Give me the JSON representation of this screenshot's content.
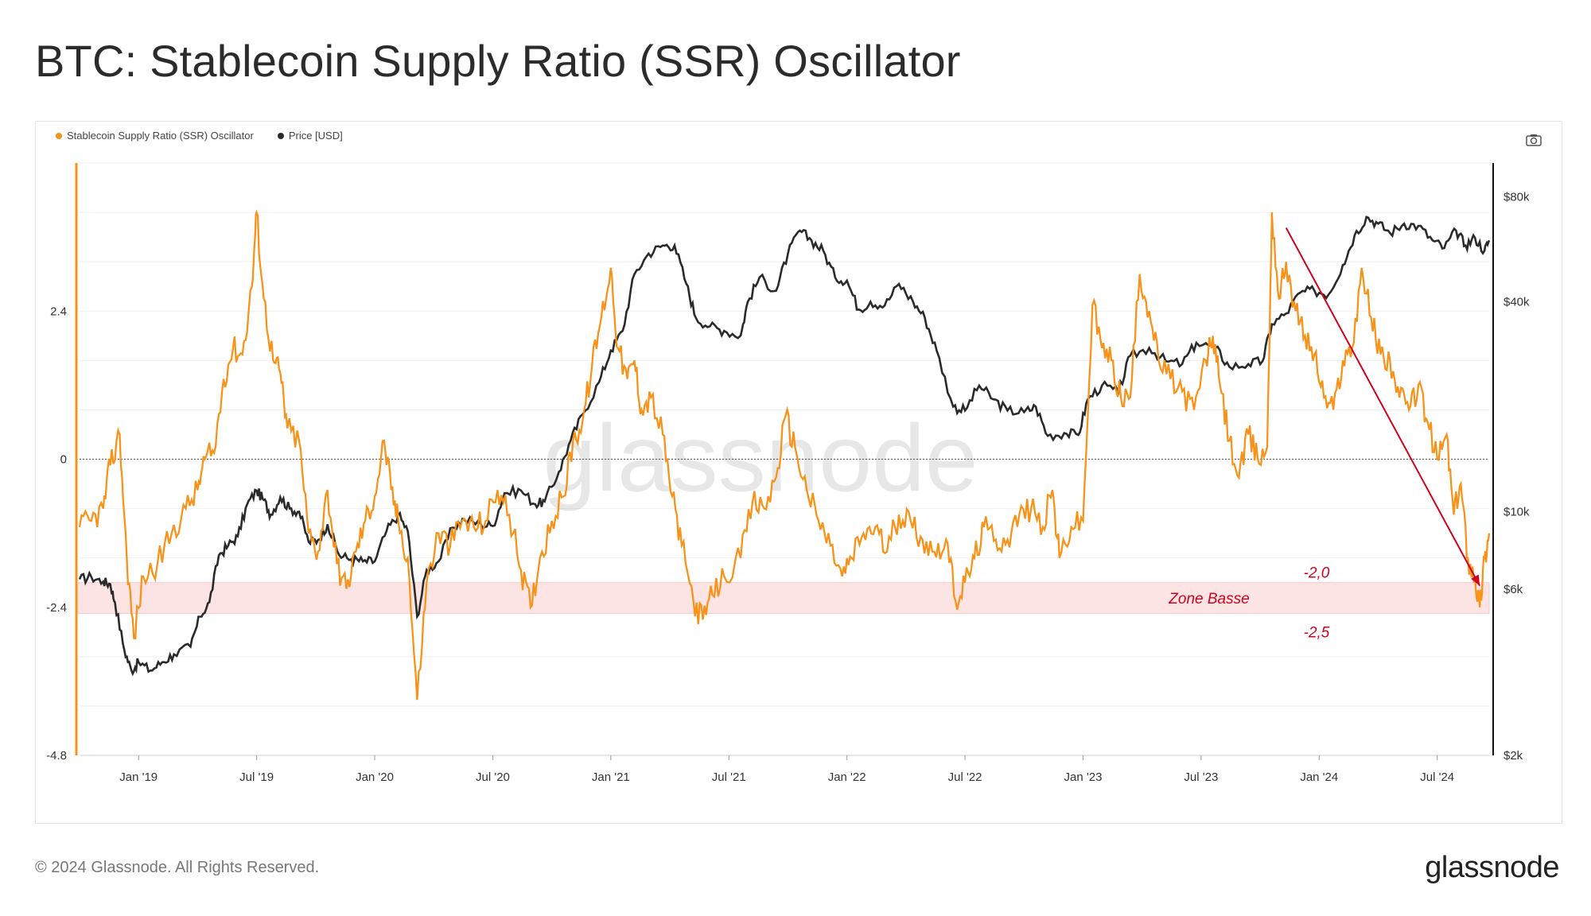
{
  "title": "BTC: Stablecoin Supply Ratio (SSR) Oscillator",
  "legend": {
    "ssr_label": "Stablecoin Supply Ratio (SSR) Oscillator",
    "price_label": "Price [USD]"
  },
  "colors": {
    "ssr": "#f7931a",
    "price": "#2a2a2a",
    "annotation": "#d0021b",
    "zone": "#fde4e4"
  },
  "footer": {
    "copyright": "© 2024 Glassnode. All Rights Reserved.",
    "brand": "glassnode"
  },
  "watermark": "glassnode",
  "chart_data": {
    "type": "line",
    "title": "BTC: Stablecoin Supply Ratio (SSR) Oscillator",
    "x_range": [
      2018.75,
      2024.72
    ],
    "x_ticks": [
      {
        "label": "Jan '19",
        "t": 2019.0
      },
      {
        "label": "Jul '19",
        "t": 2019.5
      },
      {
        "label": "Jan '20",
        "t": 2020.0
      },
      {
        "label": "Jul '20",
        "t": 2020.5
      },
      {
        "label": "Jan '21",
        "t": 2021.0
      },
      {
        "label": "Jul '21",
        "t": 2021.5
      },
      {
        "label": "Jan '22",
        "t": 2022.0
      },
      {
        "label": "Jul '22",
        "t": 2022.5
      },
      {
        "label": "Jan '23",
        "t": 2023.0
      },
      {
        "label": "Jul '23",
        "t": 2023.5
      },
      {
        "label": "Jan '24",
        "t": 2024.0
      },
      {
        "label": "Jul '24",
        "t": 2024.5
      }
    ],
    "y_left": {
      "range": [
        -4.8,
        4.8
      ],
      "ticks": [
        {
          "label": "2.4",
          "v": 2.4
        },
        {
          "label": "0",
          "v": 0
        },
        {
          "label": "-2.4",
          "v": -2.4
        },
        {
          "label": "-4.8",
          "v": -4.8
        }
      ]
    },
    "y_right": {
      "scale": "log",
      "range": [
        2000,
        100000
      ],
      "ticks": [
        {
          "label": "$80k",
          "v": 80000
        },
        {
          "label": "$40k",
          "v": 40000
        },
        {
          "label": "$10k",
          "v": 10000
        },
        {
          "label": "$6k",
          "v": 6000
        },
        {
          "label": "$2k",
          "v": 2000
        }
      ]
    },
    "series": [
      {
        "name": "Stablecoin Supply Ratio (SSR) Oscillator",
        "axis": "left",
        "points": [
          [
            2018.75,
            -1.1
          ],
          [
            2018.8,
            -1.0
          ],
          [
            2018.85,
            -0.8
          ],
          [
            2018.88,
            -0.1
          ],
          [
            2018.92,
            0.4
          ],
          [
            2018.95,
            -1.6
          ],
          [
            2018.98,
            -2.9
          ],
          [
            2019.02,
            -1.9
          ],
          [
            2019.08,
            -1.7
          ],
          [
            2019.14,
            -1.2
          ],
          [
            2019.2,
            -0.8
          ],
          [
            2019.25,
            -0.5
          ],
          [
            2019.28,
            0.0
          ],
          [
            2019.32,
            0.1
          ],
          [
            2019.36,
            1.3
          ],
          [
            2019.4,
            1.8
          ],
          [
            2019.44,
            1.7
          ],
          [
            2019.48,
            2.8
          ],
          [
            2019.5,
            4.0
          ],
          [
            2019.53,
            2.6
          ],
          [
            2019.57,
            1.6
          ],
          [
            2019.6,
            1.4
          ],
          [
            2019.63,
            0.5
          ],
          [
            2019.68,
            0.3
          ],
          [
            2019.72,
            -1.2
          ],
          [
            2019.76,
            -1.5
          ],
          [
            2019.8,
            -0.5
          ],
          [
            2019.84,
            -1.7
          ],
          [
            2019.88,
            -2.1
          ],
          [
            2019.92,
            -1.5
          ],
          [
            2019.96,
            -1.0
          ],
          [
            2020.0,
            -0.6
          ],
          [
            2020.04,
            0.3
          ],
          [
            2020.07,
            -0.5
          ],
          [
            2020.1,
            -1.0
          ],
          [
            2020.14,
            -1.6
          ],
          [
            2020.18,
            -3.9
          ],
          [
            2020.22,
            -2.0
          ],
          [
            2020.27,
            -1.2
          ],
          [
            2020.32,
            -1.4
          ],
          [
            2020.37,
            -1.0
          ],
          [
            2020.42,
            -1.1
          ],
          [
            2020.47,
            -1.0
          ],
          [
            2020.52,
            -0.5
          ],
          [
            2020.57,
            -0.9
          ],
          [
            2020.62,
            -1.8
          ],
          [
            2020.66,
            -2.4
          ],
          [
            2020.7,
            -1.6
          ],
          [
            2020.75,
            -1.0
          ],
          [
            2020.8,
            -0.6
          ],
          [
            2020.84,
            0.3
          ],
          [
            2020.88,
            0.6
          ],
          [
            2020.92,
            1.5
          ],
          [
            2020.96,
            2.3
          ],
          [
            2021.0,
            3.1
          ],
          [
            2021.03,
            1.8
          ],
          [
            2021.07,
            1.3
          ],
          [
            2021.1,
            1.6
          ],
          [
            2021.13,
            0.8
          ],
          [
            2021.17,
            1.0
          ],
          [
            2021.22,
            0.4
          ],
          [
            2021.26,
            -0.6
          ],
          [
            2021.3,
            -1.4
          ],
          [
            2021.35,
            -2.3
          ],
          [
            2021.39,
            -2.6
          ],
          [
            2021.43,
            -2.2
          ],
          [
            2021.48,
            -1.9
          ],
          [
            2021.55,
            -1.6
          ],
          [
            2021.6,
            -0.7
          ],
          [
            2021.65,
            -0.8
          ],
          [
            2021.7,
            -0.3
          ],
          [
            2021.74,
            0.7
          ],
          [
            2021.78,
            0.2
          ],
          [
            2021.83,
            -0.5
          ],
          [
            2021.88,
            -1.0
          ],
          [
            2021.93,
            -1.4
          ],
          [
            2021.98,
            -1.9
          ],
          [
            2022.02,
            -1.6
          ],
          [
            2022.07,
            -1.2
          ],
          [
            2022.12,
            -1.1
          ],
          [
            2022.17,
            -1.5
          ],
          [
            2022.22,
            -0.9
          ],
          [
            2022.27,
            -1.0
          ],
          [
            2022.32,
            -1.3
          ],
          [
            2022.37,
            -1.5
          ],
          [
            2022.42,
            -1.3
          ],
          [
            2022.46,
            -2.3
          ],
          [
            2022.5,
            -2.0
          ],
          [
            2022.54,
            -1.6
          ],
          [
            2022.58,
            -1.1
          ],
          [
            2022.63,
            -1.3
          ],
          [
            2022.68,
            -1.3
          ],
          [
            2022.73,
            -0.9
          ],
          [
            2022.78,
            -0.8
          ],
          [
            2022.83,
            -1.1
          ],
          [
            2022.87,
            -0.5
          ],
          [
            2022.9,
            -1.6
          ],
          [
            2022.95,
            -1.1
          ],
          [
            2023.0,
            -1.0
          ],
          [
            2023.04,
            2.5
          ],
          [
            2023.08,
            1.8
          ],
          [
            2023.12,
            1.6
          ],
          [
            2023.16,
            1.0
          ],
          [
            2023.2,
            1.0
          ],
          [
            2023.24,
            3.0
          ],
          [
            2023.28,
            2.4
          ],
          [
            2023.32,
            1.6
          ],
          [
            2023.37,
            1.3
          ],
          [
            2023.42,
            1.1
          ],
          [
            2023.47,
            0.8
          ],
          [
            2023.52,
            1.6
          ],
          [
            2023.55,
            2.0
          ],
          [
            2023.58,
            1.2
          ],
          [
            2023.62,
            0.3
          ],
          [
            2023.66,
            -0.3
          ],
          [
            2023.7,
            0.4
          ],
          [
            2023.74,
            0.0
          ],
          [
            2023.78,
            0.2
          ],
          [
            2023.8,
            4.0
          ],
          [
            2023.83,
            2.6
          ],
          [
            2023.86,
            3.2
          ],
          [
            2023.9,
            2.4
          ],
          [
            2023.94,
            2.0
          ],
          [
            2023.98,
            1.7
          ],
          [
            2024.02,
            1.0
          ],
          [
            2024.06,
            0.8
          ],
          [
            2024.1,
            1.6
          ],
          [
            2024.14,
            1.8
          ],
          [
            2024.18,
            3.1
          ],
          [
            2024.22,
            2.3
          ],
          [
            2024.26,
            1.7
          ],
          [
            2024.3,
            1.6
          ],
          [
            2024.34,
            1.0
          ],
          [
            2024.38,
            0.8
          ],
          [
            2024.42,
            1.2
          ],
          [
            2024.46,
            0.6
          ],
          [
            2024.5,
            0.0
          ],
          [
            2024.54,
            0.4
          ],
          [
            2024.57,
            -0.9
          ],
          [
            2024.6,
            -0.4
          ],
          [
            2024.63,
            -1.6
          ],
          [
            2024.66,
            -1.9
          ],
          [
            2024.68,
            -2.4
          ],
          [
            2024.7,
            -1.6
          ],
          [
            2024.72,
            -1.2
          ]
        ]
      },
      {
        "name": "Price [USD]",
        "axis": "right",
        "points": [
          [
            2018.75,
            6400
          ],
          [
            2018.8,
            6500
          ],
          [
            2018.85,
            6300
          ],
          [
            2018.88,
            6200
          ],
          [
            2018.9,
            5500
          ],
          [
            2018.94,
            4000
          ],
          [
            2018.97,
            3500
          ],
          [
            2019.0,
            3700
          ],
          [
            2019.05,
            3500
          ],
          [
            2019.1,
            3700
          ],
          [
            2019.15,
            3900
          ],
          [
            2019.22,
            4100
          ],
          [
            2019.26,
            5000
          ],
          [
            2019.3,
            5500
          ],
          [
            2019.34,
            7500
          ],
          [
            2019.38,
            8000
          ],
          [
            2019.42,
            8500
          ],
          [
            2019.46,
            10500
          ],
          [
            2019.5,
            11500
          ],
          [
            2019.53,
            10800
          ],
          [
            2019.56,
            9800
          ],
          [
            2019.6,
            11000
          ],
          [
            2019.64,
            10200
          ],
          [
            2019.68,
            10000
          ],
          [
            2019.72,
            8200
          ],
          [
            2019.76,
            8300
          ],
          [
            2019.8,
            9200
          ],
          [
            2019.85,
            7500
          ],
          [
            2019.9,
            7300
          ],
          [
            2019.95,
            7200
          ],
          [
            2020.0,
            7200
          ],
          [
            2020.05,
            8800
          ],
          [
            2020.1,
            9800
          ],
          [
            2020.14,
            8800
          ],
          [
            2020.18,
            5000
          ],
          [
            2020.22,
            6800
          ],
          [
            2020.27,
            7200
          ],
          [
            2020.33,
            9000
          ],
          [
            2020.38,
            9500
          ],
          [
            2020.45,
            9200
          ],
          [
            2020.5,
            9100
          ],
          [
            2020.55,
            11300
          ],
          [
            2020.62,
            11500
          ],
          [
            2020.68,
            10500
          ],
          [
            2020.72,
            10700
          ],
          [
            2020.78,
            13000
          ],
          [
            2020.83,
            16000
          ],
          [
            2020.88,
            19000
          ],
          [
            2020.95,
            23500
          ],
          [
            2021.0,
            29000
          ],
          [
            2021.05,
            33000
          ],
          [
            2021.1,
            48000
          ],
          [
            2021.16,
            55000
          ],
          [
            2021.22,
            58000
          ],
          [
            2021.27,
            58000
          ],
          [
            2021.32,
            45000
          ],
          [
            2021.36,
            36000
          ],
          [
            2021.42,
            34000
          ],
          [
            2021.48,
            33000
          ],
          [
            2021.55,
            32000
          ],
          [
            2021.58,
            40000
          ],
          [
            2021.63,
            47000
          ],
          [
            2021.7,
            43000
          ],
          [
            2021.75,
            55000
          ],
          [
            2021.8,
            64000
          ],
          [
            2021.85,
            60000
          ],
          [
            2021.9,
            56000
          ],
          [
            2021.95,
            47000
          ],
          [
            2022.0,
            46000
          ],
          [
            2022.05,
            38000
          ],
          [
            2022.1,
            40000
          ],
          [
            2022.16,
            39000
          ],
          [
            2022.22,
            45000
          ],
          [
            2022.28,
            40000
          ],
          [
            2022.33,
            36000
          ],
          [
            2022.38,
            29000
          ],
          [
            2022.45,
            20000
          ],
          [
            2022.5,
            19500
          ],
          [
            2022.56,
            23000
          ],
          [
            2022.62,
            21000
          ],
          [
            2022.68,
            19500
          ],
          [
            2022.75,
            19300
          ],
          [
            2022.8,
            20000
          ],
          [
            2022.85,
            16500
          ],
          [
            2022.92,
            16800
          ],
          [
            2022.98,
            16600
          ],
          [
            2023.02,
            21000
          ],
          [
            2023.08,
            23000
          ],
          [
            2023.15,
            22000
          ],
          [
            2023.2,
            28000
          ],
          [
            2023.28,
            29500
          ],
          [
            2023.35,
            27000
          ],
          [
            2023.42,
            26500
          ],
          [
            2023.48,
            30500
          ],
          [
            2023.56,
            29500
          ],
          [
            2023.62,
            26000
          ],
          [
            2023.7,
            26500
          ],
          [
            2023.76,
            27000
          ],
          [
            2023.8,
            34500
          ],
          [
            2023.86,
            37000
          ],
          [
            2023.92,
            42500
          ],
          [
            2023.98,
            43000
          ],
          [
            2024.04,
            42000
          ],
          [
            2024.1,
            51000
          ],
          [
            2024.15,
            62000
          ],
          [
            2024.2,
            70000
          ],
          [
            2024.25,
            67000
          ],
          [
            2024.3,
            63000
          ],
          [
            2024.36,
            67000
          ],
          [
            2024.42,
            66000
          ],
          [
            2024.48,
            60000
          ],
          [
            2024.53,
            57000
          ],
          [
            2024.58,
            64000
          ],
          [
            2024.62,
            58000
          ],
          [
            2024.66,
            61000
          ],
          [
            2024.7,
            56000
          ],
          [
            2024.72,
            60000
          ]
        ]
      }
    ],
    "annotations": [
      {
        "text": "-2,0",
        "value": -2.0
      },
      {
        "text": "Zone Basse",
        "value": -2.25
      },
      {
        "text": "-2,5",
        "value": -2.5
      }
    ],
    "zone": {
      "label": "Zone Basse",
      "from": -2.5,
      "to": -2.0
    }
  }
}
